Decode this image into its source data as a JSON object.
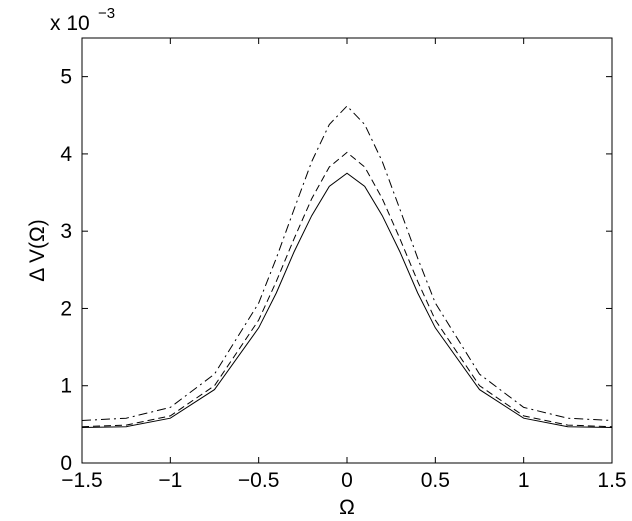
{
  "chart_data": {
    "type": "line",
    "xlabel": "Ω",
    "ylabel": "Δ V(Ω)",
    "exponent_base": "x 10",
    "exponent_power": "−3",
    "xlim": [
      -1.5,
      1.5
    ],
    "ylim": [
      0,
      5.5
    ],
    "x_ticks": [
      -1.5,
      -1,
      -0.5,
      0,
      0.5,
      1,
      1.5
    ],
    "x_tick_labels": [
      "−1.5",
      "−1",
      "−0.5",
      "0",
      "0.5",
      "1",
      "1.5"
    ],
    "y_ticks": [
      0,
      1,
      2,
      3,
      4,
      5
    ],
    "y_tick_labels": [
      "0",
      "1",
      "2",
      "3",
      "4",
      "5"
    ],
    "grid": false,
    "series": [
      {
        "style": "solid",
        "x": [
          -1.5,
          -1.25,
          -1.0,
          -0.75,
          -0.5,
          -0.4,
          -0.3,
          -0.2,
          -0.1,
          0.0,
          0.1,
          0.2,
          0.3,
          0.4,
          0.5,
          0.75,
          1.0,
          1.25,
          1.5
        ],
        "values": [
          0.46,
          0.47,
          0.58,
          0.95,
          1.75,
          2.2,
          2.73,
          3.2,
          3.58,
          3.75,
          3.58,
          3.2,
          2.73,
          2.2,
          1.75,
          0.95,
          0.58,
          0.47,
          0.46
        ]
      },
      {
        "style": "dashed",
        "x": [
          -1.5,
          -1.25,
          -1.0,
          -0.75,
          -0.5,
          -0.4,
          -0.3,
          -0.2,
          -0.1,
          0.0,
          0.1,
          0.2,
          0.3,
          0.4,
          0.5,
          0.75,
          1.0,
          1.25,
          1.5
        ],
        "values": [
          0.47,
          0.49,
          0.61,
          1.0,
          1.85,
          2.35,
          2.9,
          3.42,
          3.83,
          4.02,
          3.83,
          3.42,
          2.9,
          2.35,
          1.85,
          1.0,
          0.61,
          0.49,
          0.47
        ]
      },
      {
        "style": "dashdot",
        "x": [
          -1.5,
          -1.25,
          -1.0,
          -0.75,
          -0.5,
          -0.4,
          -0.3,
          -0.2,
          -0.1,
          0.0,
          0.1,
          0.2,
          0.3,
          0.4,
          0.5,
          0.75,
          1.0,
          1.25,
          1.5
        ],
        "values": [
          0.55,
          0.58,
          0.72,
          1.15,
          2.07,
          2.65,
          3.28,
          3.9,
          4.38,
          4.62,
          4.38,
          3.9,
          3.28,
          2.65,
          2.07,
          1.15,
          0.72,
          0.58,
          0.55
        ]
      }
    ]
  }
}
